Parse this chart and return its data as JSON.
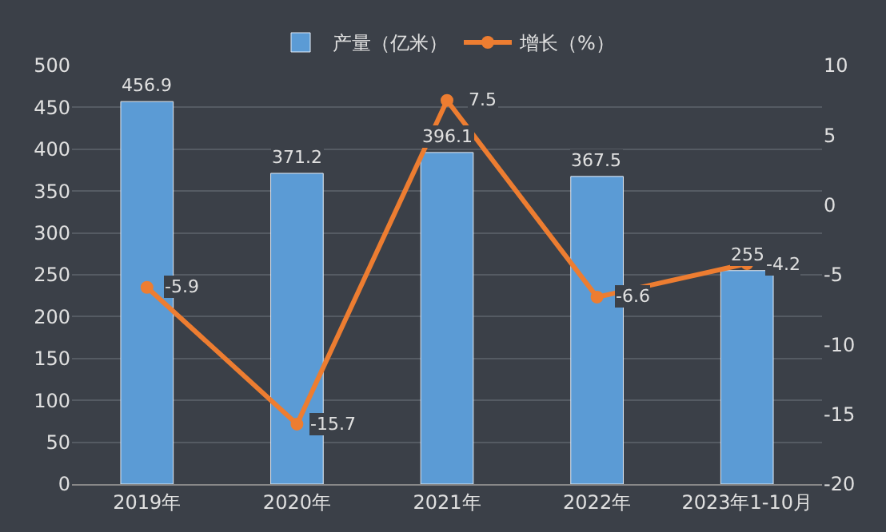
{
  "chart_data": {
    "type": "bar",
    "categories": [
      "2019年",
      "2020年",
      "2021年",
      "2022年",
      "2023年1-10月"
    ],
    "series": [
      {
        "name": "产量（亿米）",
        "color": "#5b9bd5",
        "values": [
          456.9,
          371.2,
          396.1,
          367.5,
          255
        ]
      },
      {
        "name": "增长（%）",
        "type": "line",
        "axis": "y2",
        "color": "#ed7d31",
        "values": [
          -5.9,
          -15.7,
          7.5,
          -6.6,
          -4.2
        ]
      }
    ],
    "ylim": [
      0,
      500
    ],
    "yticks": [
      0,
      50,
      100,
      150,
      200,
      250,
      300,
      350,
      400,
      450,
      500
    ],
    "y2lim": [
      -20,
      10
    ],
    "y2ticks": [
      -20,
      -15,
      -10,
      -5,
      0,
      5,
      10
    ],
    "data_labels": true,
    "grid": "y",
    "legend": "top",
    "marker": "circle"
  }
}
